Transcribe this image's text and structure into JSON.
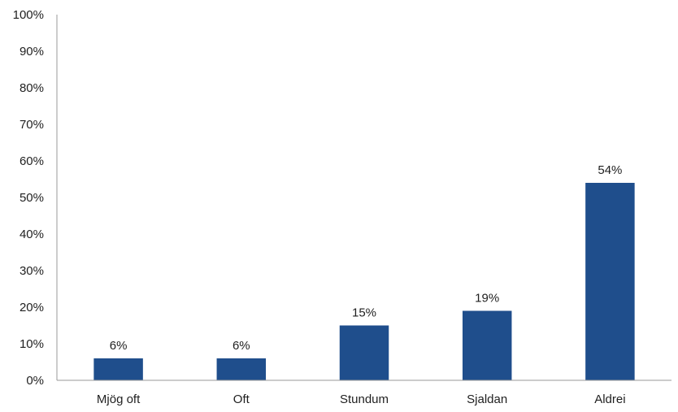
{
  "chart_data": {
    "type": "bar",
    "categories": [
      "Mjög oft",
      "Oft",
      "Stundum",
      "Sjaldan",
      "Aldrei"
    ],
    "values": [
      6,
      6,
      15,
      19,
      54
    ],
    "data_labels": [
      "6%",
      "6%",
      "15%",
      "19%",
      "54%"
    ],
    "y_ticks": [
      "0%",
      "10%",
      "20%",
      "30%",
      "40%",
      "50%",
      "60%",
      "70%",
      "80%",
      "90%",
      "100%"
    ],
    "ylim": [
      0,
      100
    ],
    "bar_color": "#1f4e8c",
    "grid": false,
    "title": "",
    "xlabel": "",
    "ylabel": ""
  }
}
